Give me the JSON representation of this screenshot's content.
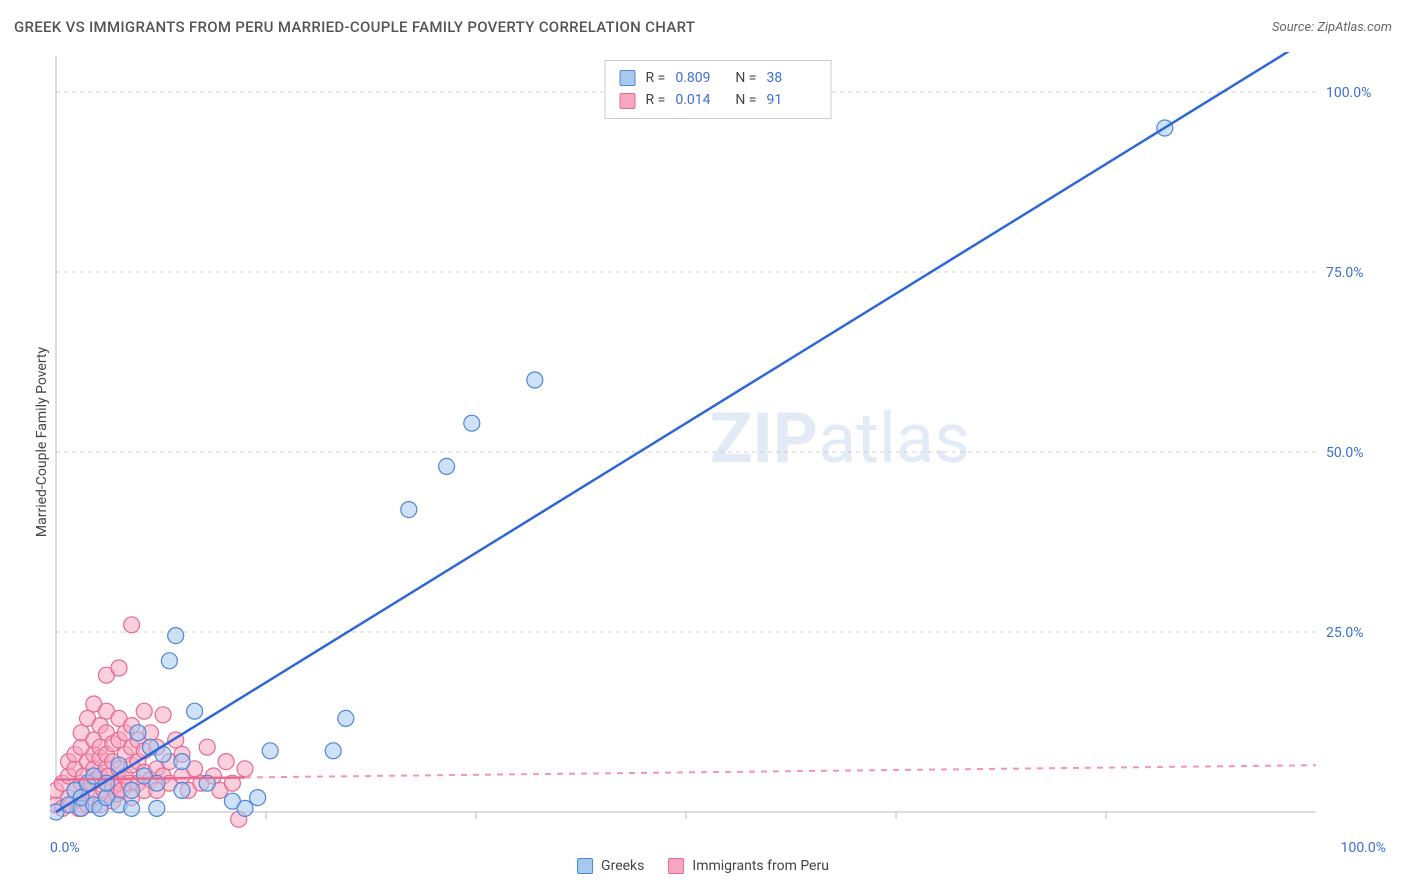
{
  "header": {
    "title": "GREEK VS IMMIGRANTS FROM PERU MARRIED-COUPLE FAMILY POVERTY CORRELATION CHART",
    "source": "Source: ZipAtlas.com"
  },
  "yaxis_label": "Married-Couple Family Poverty",
  "watermark": {
    "bold": "ZIP",
    "rest": "atlas"
  },
  "chart": {
    "type": "scatter",
    "xlim": [
      0,
      100
    ],
    "ylim": [
      0,
      105
    ],
    "xticks": [
      0,
      100
    ],
    "xtick_labels": [
      "0.0%",
      "100.0%"
    ],
    "xtick_minors": [
      16.67,
      33.33,
      50,
      66.67,
      83.33
    ],
    "yticks": [
      25,
      50,
      75,
      100
    ],
    "ytick_labels": [
      "25.0%",
      "50.0%",
      "75.0%",
      "100.0%"
    ],
    "background_color": "#ffffff",
    "grid_color": "#d0d0d0",
    "axis_color": "#bbbbbb",
    "tick_label_color": "#3b6fd6",
    "marker_radius": 8,
    "series": [
      {
        "name": "Greeks",
        "color_fill": "#a8c8f0",
        "color_stroke": "#4d87d6",
        "trend_color": "#2d66d6",
        "trend_style": "solid",
        "trend": {
          "x1": 0,
          "y1": 0,
          "x2": 100,
          "y2": 108
        },
        "r": "0.809",
        "n": "38",
        "points": [
          [
            0,
            0
          ],
          [
            1,
            1
          ],
          [
            1.5,
            3
          ],
          [
            2,
            0.5
          ],
          [
            2,
            2
          ],
          [
            2.5,
            4
          ],
          [
            3,
            1
          ],
          [
            3,
            5
          ],
          [
            3.5,
            0.5
          ],
          [
            4,
            2
          ],
          [
            4,
            4
          ],
          [
            5,
            1
          ],
          [
            5,
            6.5
          ],
          [
            6,
            3
          ],
          [
            6,
            0.5
          ],
          [
            6.5,
            11
          ],
          [
            7,
            5
          ],
          [
            7.5,
            9
          ],
          [
            8,
            4
          ],
          [
            8,
            0.5
          ],
          [
            8.5,
            8
          ],
          [
            9,
            21
          ],
          [
            9.5,
            24.5
          ],
          [
            10,
            7
          ],
          [
            10,
            3
          ],
          [
            11,
            14
          ],
          [
            12,
            4
          ],
          [
            14,
            1.5
          ],
          [
            15,
            0.5
          ],
          [
            16,
            2
          ],
          [
            17,
            8.5
          ],
          [
            22,
            8.5
          ],
          [
            23,
            13
          ],
          [
            28,
            42
          ],
          [
            31,
            48
          ],
          [
            33,
            54
          ],
          [
            38,
            60
          ],
          [
            88,
            95
          ]
        ]
      },
      {
        "name": "Immigrants from Peru",
        "color_fill": "#f7a8c0",
        "color_stroke": "#e56a92",
        "trend_color": "#f098b0",
        "trend_style": "dashed",
        "trend_solid_end": 15,
        "trend": {
          "x1": 0,
          "y1": 4.5,
          "x2": 100,
          "y2": 6.5
        },
        "r": "0.014",
        "n": "91",
        "points": [
          [
            0,
            1
          ],
          [
            0,
            3
          ],
          [
            0.5,
            0.5
          ],
          [
            0.5,
            4
          ],
          [
            1,
            2
          ],
          [
            1,
            5
          ],
          [
            1,
            7
          ],
          [
            1.2,
            1
          ],
          [
            1.5,
            3
          ],
          [
            1.5,
            6
          ],
          [
            1.5,
            8
          ],
          [
            1.8,
            0.5
          ],
          [
            2,
            4
          ],
          [
            2,
            2
          ],
          [
            2,
            9
          ],
          [
            2,
            11
          ],
          [
            2.2,
            5
          ],
          [
            2.5,
            1
          ],
          [
            2.5,
            3
          ],
          [
            2.5,
            7
          ],
          [
            2.5,
            13
          ],
          [
            2.8,
            4
          ],
          [
            3,
            2
          ],
          [
            3,
            6
          ],
          [
            3,
            8
          ],
          [
            3,
            10
          ],
          [
            3,
            15
          ],
          [
            3.2,
            4.5
          ],
          [
            3.5,
            1
          ],
          [
            3.5,
            5
          ],
          [
            3.5,
            7.5
          ],
          [
            3.5,
            9
          ],
          [
            3.5,
            12
          ],
          [
            3.8,
            3
          ],
          [
            4,
            2
          ],
          [
            4,
            4
          ],
          [
            4,
            6
          ],
          [
            4,
            8
          ],
          [
            4,
            11
          ],
          [
            4,
            14
          ],
          [
            4,
            19
          ],
          [
            4.2,
            5
          ],
          [
            4.5,
            1.5
          ],
          [
            4.5,
            3.5
          ],
          [
            4.5,
            7
          ],
          [
            4.5,
            9.5
          ],
          [
            4.8,
            2.5
          ],
          [
            5,
            4
          ],
          [
            5,
            6
          ],
          [
            5,
            10
          ],
          [
            5,
            13
          ],
          [
            5,
            20
          ],
          [
            5.2,
            3
          ],
          [
            5.5,
            5
          ],
          [
            5.5,
            8
          ],
          [
            5.5,
            11
          ],
          [
            5.8,
            4
          ],
          [
            6,
            2
          ],
          [
            6,
            6.5
          ],
          [
            6,
            9
          ],
          [
            6,
            12
          ],
          [
            6,
            26
          ],
          [
            6.5,
            4
          ],
          [
            6.5,
            7
          ],
          [
            6.5,
            10
          ],
          [
            7,
            3
          ],
          [
            7,
            5.5
          ],
          [
            7,
            8.5
          ],
          [
            7,
            14
          ],
          [
            7.5,
            4.5
          ],
          [
            7.5,
            11
          ],
          [
            8,
            3
          ],
          [
            8,
            6
          ],
          [
            8,
            9
          ],
          [
            8.5,
            5
          ],
          [
            8.5,
            13.5
          ],
          [
            9,
            4
          ],
          [
            9,
            7
          ],
          [
            9.5,
            10
          ],
          [
            10,
            5
          ],
          [
            10,
            8
          ],
          [
            10.5,
            3
          ],
          [
            11,
            6
          ],
          [
            11.5,
            4
          ],
          [
            12,
            9
          ],
          [
            12.5,
            5
          ],
          [
            13,
            3
          ],
          [
            13.5,
            7
          ],
          [
            14,
            4
          ],
          [
            14.5,
            -1
          ],
          [
            15,
            6
          ]
        ]
      }
    ]
  },
  "stat_legend": {
    "r_label": "R =",
    "n_label": "N ="
  },
  "bottom_legend": {
    "items": [
      "Greeks",
      "Immigrants from Peru"
    ]
  }
}
